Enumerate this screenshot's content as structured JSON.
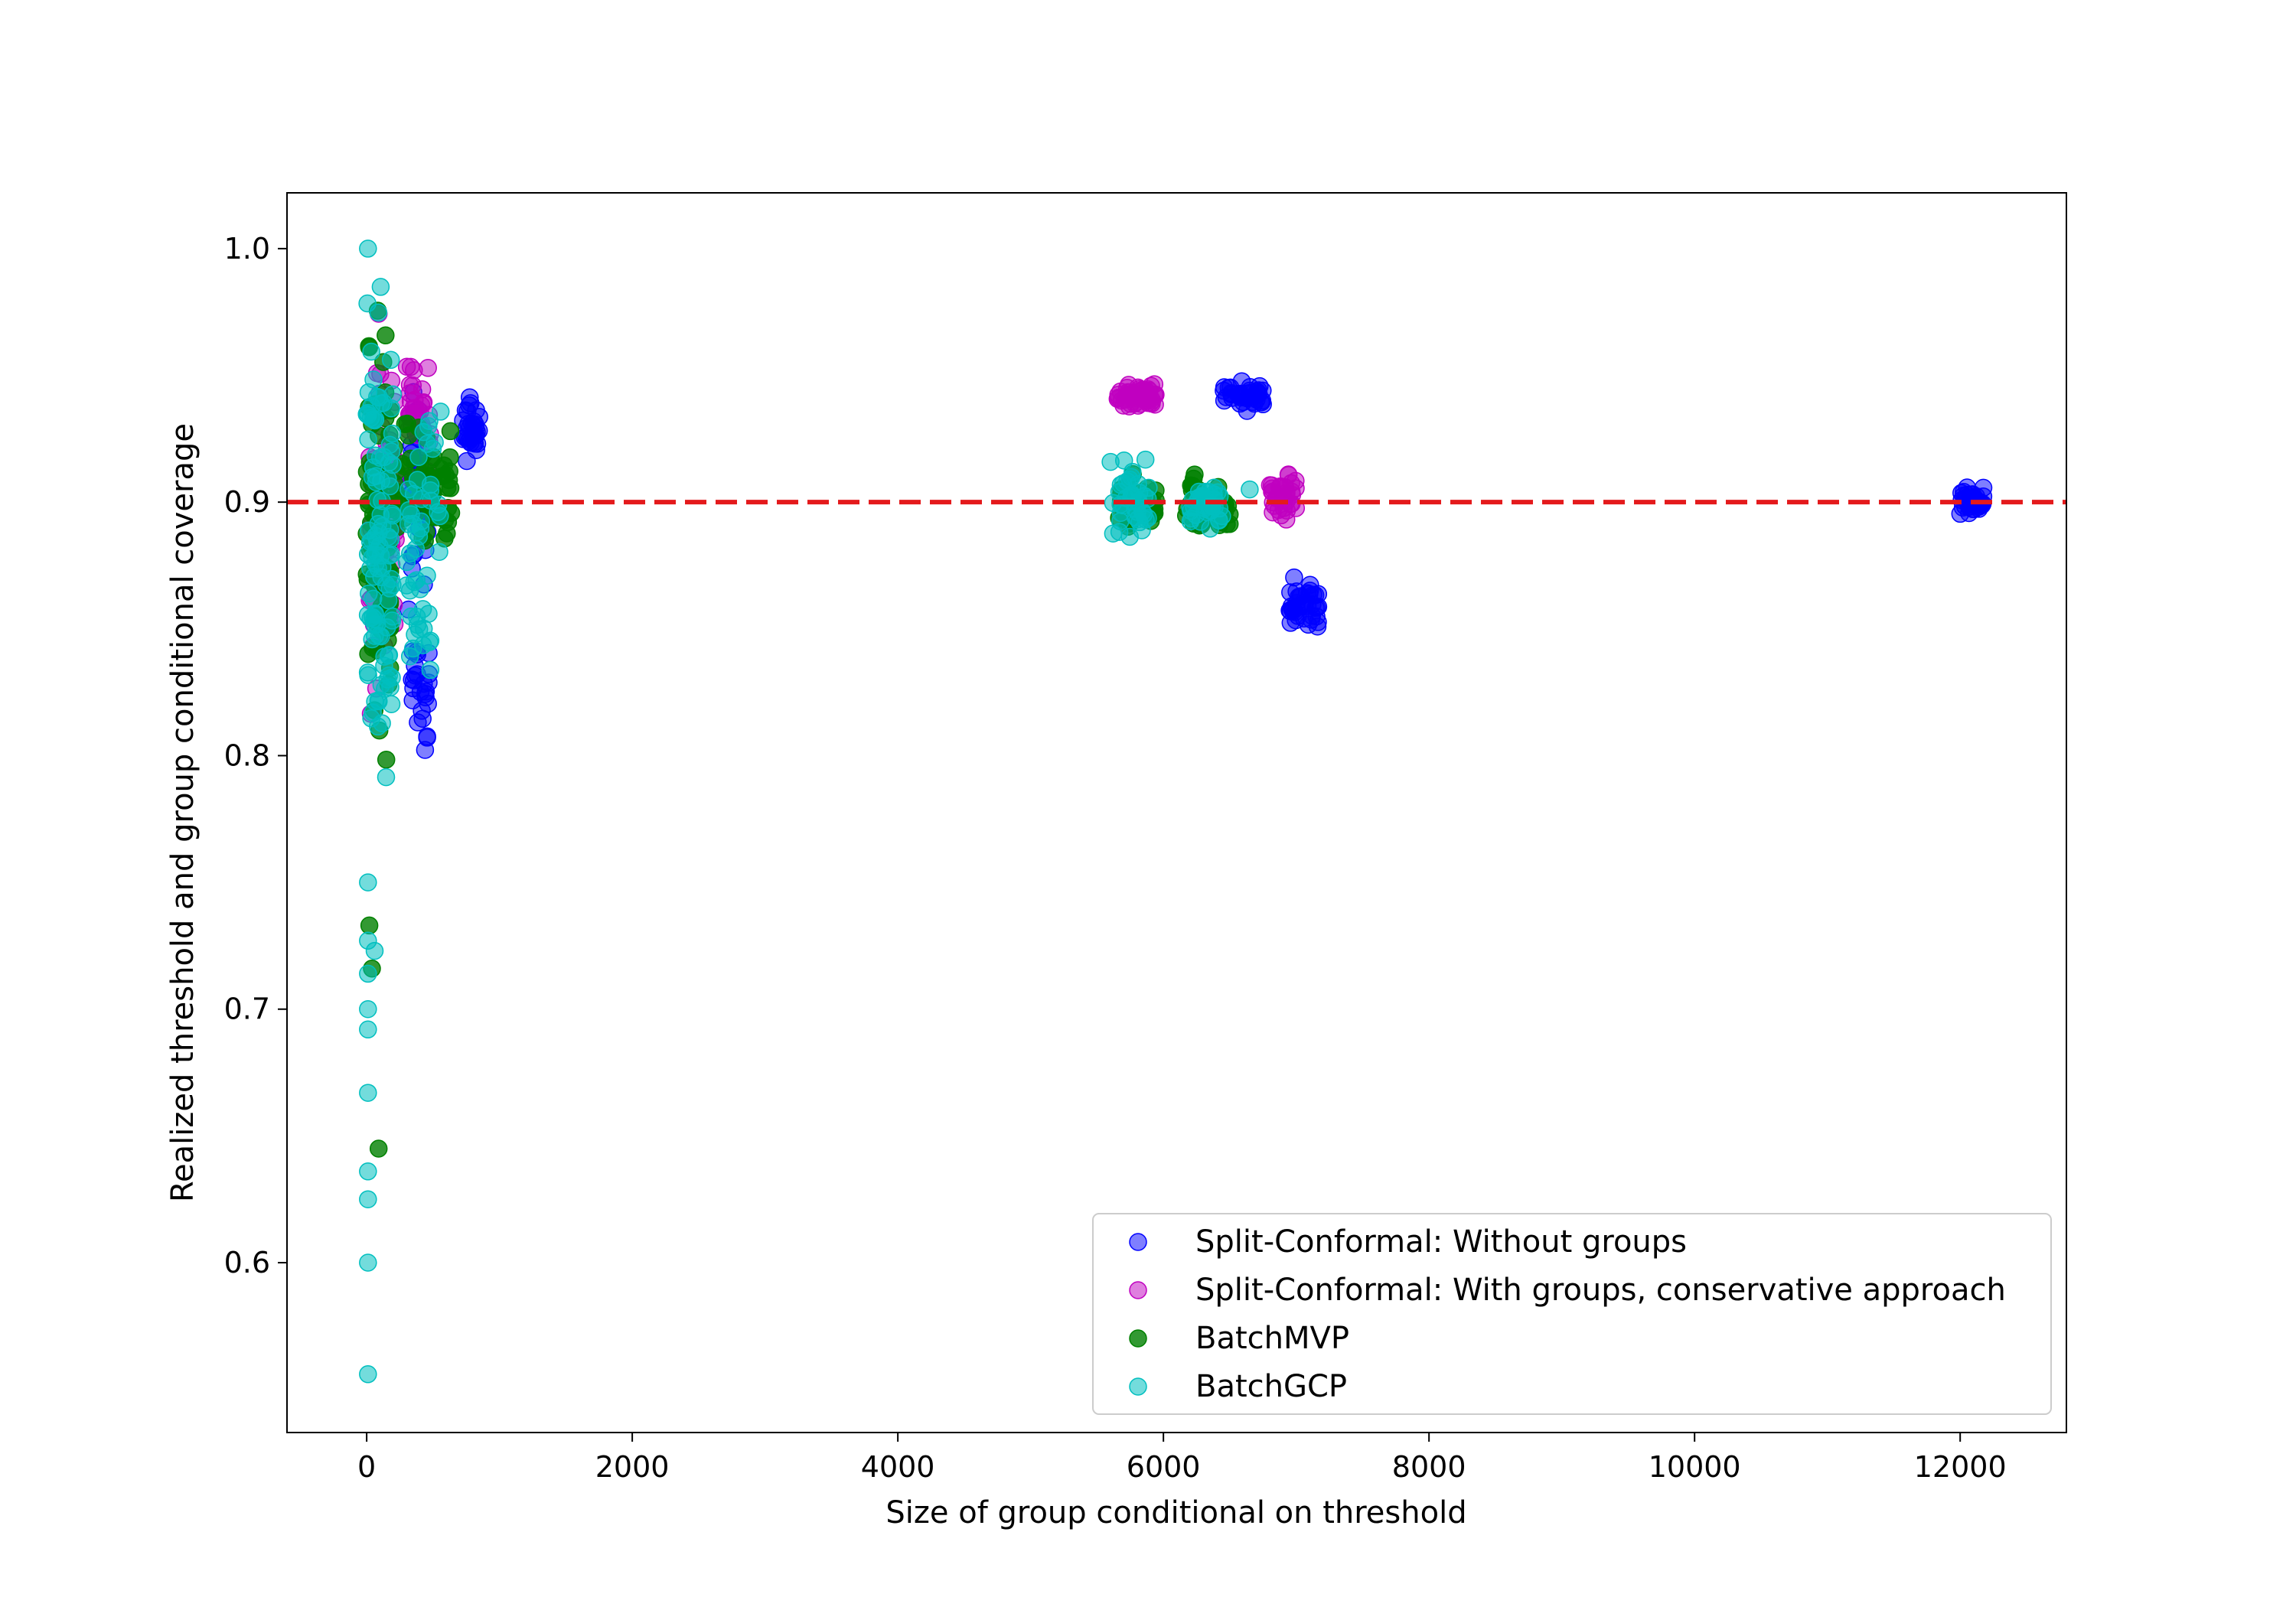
{
  "chart_data": {
    "type": "scatter",
    "title": "",
    "xlabel": "Size of group conditional on threshold",
    "ylabel": "Realized threshold and group conditional coverage",
    "xlim": [
      -600,
      12800
    ],
    "ylim": [
      0.533,
      1.022
    ],
    "x_ticks": [
      0,
      2000,
      4000,
      6000,
      8000,
      10000,
      12000
    ],
    "x_tick_labels": [
      "0",
      "2000",
      "4000",
      "6000",
      "8000",
      "10000",
      "12000"
    ],
    "y_ticks": [
      0.6,
      0.7,
      0.8,
      0.9,
      1.0
    ],
    "y_tick_labels": [
      "0.6",
      "0.7",
      "0.8",
      "0.9",
      "1.0"
    ],
    "grid": false,
    "legend_position": "bottom-right",
    "reference_line": {
      "y": 0.9,
      "color": "#e41a1c",
      "style": "dashed"
    },
    "series": [
      {
        "name": "Split-Conformal: Without groups",
        "color": "#0000ff",
        "opacity": 0.5,
        "clusters": [
          {
            "x": [
              300,
              460
            ],
            "y": [
              0.84,
              0.97
            ],
            "n": 40
          },
          {
            "x": [
              340,
              470
            ],
            "y": [
              0.795,
              0.85
            ],
            "n": 25
          },
          {
            "x": [
              720,
              850
            ],
            "y": [
              0.913,
              0.947
            ],
            "n": 35
          },
          {
            "x": [
              6450,
              6750
            ],
            "y": [
              0.935,
              0.948
            ],
            "n": 40
          },
          {
            "x": [
              6950,
              7180
            ],
            "y": [
              0.849,
              0.873
            ],
            "n": 40
          },
          {
            "x": [
              12000,
              12180
            ],
            "y": [
              0.893,
              0.907
            ],
            "n": 40
          }
        ]
      },
      {
        "name": "Split-Conformal: With groups, conservative approach",
        "color": "#c000c0",
        "opacity": 0.5,
        "clusters": [
          {
            "x": [
              20,
              220
            ],
            "y": [
              0.8,
              0.99
            ],
            "n": 70
          },
          {
            "x": [
              300,
              480
            ],
            "y": [
              0.9,
              0.97
            ],
            "n": 35
          },
          {
            "x": [
              5650,
              5950
            ],
            "y": [
              0.936,
              0.948
            ],
            "n": 55
          },
          {
            "x": [
              6800,
              7000
            ],
            "y": [
              0.891,
              0.915
            ],
            "n": 35
          }
        ]
      },
      {
        "name": "BatchMVP",
        "color": "#008000",
        "opacity": 0.8,
        "clusters": [
          {
            "x": [
              0,
              180
            ],
            "y": [
              0.78,
              0.99
            ],
            "n": 90
          },
          {
            "x": [
              200,
              650
            ],
            "y": [
              0.865,
              0.94
            ],
            "n": 60
          },
          {
            "x": [
              5650,
              5950
            ],
            "y": [
              0.887,
              0.913
            ],
            "n": 45
          },
          {
            "x": [
              6150,
              6500
            ],
            "y": [
              0.885,
              0.914
            ],
            "n": 45
          }
        ],
        "points": [
          {
            "x": 20,
            "y": 0.733
          },
          {
            "x": 40,
            "y": 0.716
          },
          {
            "x": 90,
            "y": 0.645
          }
        ]
      },
      {
        "name": "BatchGCP",
        "color": "#00bfbf",
        "opacity": 0.55,
        "clusters": [
          {
            "x": [
              0,
              200
            ],
            "y": [
              0.76,
              1.0
            ],
            "n": 110
          },
          {
            "x": [
              300,
              560
            ],
            "y": [
              0.815,
              0.95
            ],
            "n": 50
          },
          {
            "x": [
              5600,
              5900
            ],
            "y": [
              0.882,
              0.922
            ],
            "n": 40
          },
          {
            "x": [
              6200,
              6450
            ],
            "y": [
              0.887,
              0.913
            ],
            "n": 35
          }
        ],
        "points": [
          {
            "x": 10,
            "y": 0.75
          },
          {
            "x": 10,
            "y": 0.727
          },
          {
            "x": 60,
            "y": 0.723
          },
          {
            "x": 10,
            "y": 0.714
          },
          {
            "x": 10,
            "y": 0.7
          },
          {
            "x": 10,
            "y": 0.692
          },
          {
            "x": 10,
            "y": 0.667
          },
          {
            "x": 10,
            "y": 0.636
          },
          {
            "x": 10,
            "y": 0.625
          },
          {
            "x": 10,
            "y": 0.6
          },
          {
            "x": 10,
            "y": 0.556
          },
          {
            "x": 10,
            "y": 1.0
          },
          {
            "x": 6650,
            "y": 0.905
          }
        ]
      }
    ]
  }
}
